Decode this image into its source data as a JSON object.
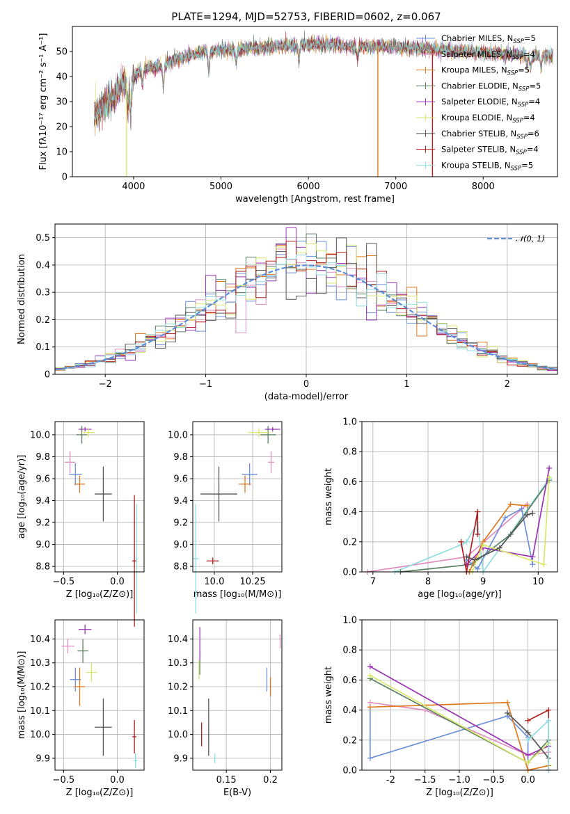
{
  "figure": {
    "title": "PLATE=1294, MJD=52753, FIBERID=0602, z=0.067"
  },
  "colors": {
    "Chabrier MILES": "#6b8fd8",
    "Salpeter MILES": "#e08ec0",
    "Kroupa MILES": "#e07a1f",
    "Chabrier ELODIE": "#5a8060",
    "Salpeter ELODIE": "#9a35b5",
    "Kroupa ELODIE": "#d9e86a",
    "Chabrier STELIB": "#555555",
    "Salpeter STELIB": "#b01e1e",
    "Kroupa STELIB": "#8fdde0",
    "normal": "#5b8fd8"
  },
  "chart_data": [
    {
      "id": "spectrum",
      "type": "line",
      "title": "PLATE=1294, MJD=52753, FIBERID=0602, z=0.067",
      "xlabel": "wavelength [Angstrom, rest frame]",
      "ylabel": "Flux [fλ10⁻¹⁷ erg cm⁻² s⁻¹ A⁻¹]",
      "xlim": [
        3300,
        8850
      ],
      "ylim": [
        0,
        60
      ],
      "xticks": [
        4000,
        5000,
        6000,
        7000,
        8000
      ],
      "yticks": [
        0,
        10,
        20,
        30,
        40,
        50
      ],
      "grid": false,
      "legend_position": "right",
      "legend": [
        {
          "label": "Chabrier MILES, N",
          "sub": "SSP",
          "suffix": "=5",
          "series": "Chabrier MILES"
        },
        {
          "label": "Salpeter MILES, N",
          "sub": "SSP",
          "suffix": "=4",
          "series": "Salpeter MILES"
        },
        {
          "label": "Kroupa MILES, N",
          "sub": "SSP",
          "suffix": "=5",
          "series": "Kroupa MILES"
        },
        {
          "label": "Chabrier ELODIE, N",
          "sub": "SSP",
          "suffix": "=5",
          "series": "Chabrier ELODIE"
        },
        {
          "label": "Salpeter ELODIE, N",
          "sub": "SSP",
          "suffix": "=4",
          "series": "Salpeter ELODIE"
        },
        {
          "label": "Kroupa ELODIE, N",
          "sub": "SSP",
          "suffix": "=4",
          "series": "Kroupa ELODIE"
        },
        {
          "label": "Chabrier STELIB, N",
          "sub": "SSP",
          "suffix": "=6",
          "series": "Chabrier STELIB"
        },
        {
          "label": "Salpeter STELIB, N",
          "sub": "SSP",
          "suffix": "=4",
          "series": "Salpeter STELIB"
        },
        {
          "label": "Kroupa STELIB, N",
          "sub": "SSP",
          "suffix": "=5",
          "series": "Kroupa STELIB"
        }
      ],
      "continuum": [
        [
          3550,
          25
        ],
        [
          3650,
          28
        ],
        [
          3750,
          31
        ],
        [
          3850,
          36
        ],
        [
          3950,
          38
        ],
        [
          4100,
          43
        ],
        [
          4300,
          44
        ],
        [
          4500,
          47
        ],
        [
          4800,
          50
        ],
        [
          5200,
          51
        ],
        [
          5600,
          52
        ],
        [
          6000,
          53
        ],
        [
          6500,
          52
        ],
        [
          7000,
          52
        ],
        [
          7400,
          51
        ],
        [
          7800,
          50
        ],
        [
          8200,
          49
        ],
        [
          8800,
          48
        ]
      ],
      "absorption_features": [
        [
          3933,
          12
        ],
        [
          3968,
          12
        ],
        [
          4102,
          6
        ],
        [
          4340,
          8
        ],
        [
          4861,
          8
        ],
        [
          5175,
          5
        ],
        [
          5890,
          6
        ],
        [
          6563,
          4
        ],
        [
          8500,
          4
        ],
        [
          8542,
          5
        ],
        [
          8662,
          4
        ]
      ],
      "spikes": [
        {
          "x": 3920,
          "series": "Kroupa ELODIE"
        },
        {
          "x": 6795,
          "series": "Kroupa MILES"
        },
        {
          "x": 7420,
          "series": "Salpeter STELIB"
        }
      ]
    },
    {
      "id": "residuals",
      "type": "step",
      "xlabel": "(data-model)/error",
      "ylabel": "Normed distribution",
      "xlim": [
        -2.5,
        2.5
      ],
      "ylim": [
        0,
        0.55
      ],
      "xticks": [
        -2,
        -1,
        0,
        1,
        2
      ],
      "yticks": [
        0.0,
        0.1,
        0.2,
        0.3,
        0.4,
        0.5
      ],
      "grid": true,
      "legend_position": "top-right",
      "legend_label": "𝒩(0, 1)",
      "bin_width": 0.1,
      "bin_start": -2.5,
      "reference": {
        "type": "normal",
        "mean": 0,
        "sigma": 1
      }
    },
    {
      "id": "age_vs_Z",
      "type": "errorbar",
      "xlabel": "Z [log₁₀(Z/Z⊙)]",
      "ylabel": "age  [log₁₀(age/yr)]",
      "xlim": [
        -0.58,
        0.25
      ],
      "ylim": [
        8.75,
        10.12
      ],
      "xticks": [
        -0.5,
        0.0
      ],
      "yticks": [
        8.8,
        9.0,
        9.2,
        9.4,
        9.6,
        9.8,
        10.0
      ],
      "grid": true,
      "points": [
        {
          "series": "Chabrier MILES",
          "x": -0.39,
          "y": 9.64,
          "xerr": 0.06,
          "yerr": 0.1
        },
        {
          "series": "Salpeter MILES",
          "x": -0.44,
          "y": 9.75,
          "xerr": 0.05,
          "yerr": 0.1
        },
        {
          "series": "Kroupa MILES",
          "x": -0.35,
          "y": 9.55,
          "xerr": 0.05,
          "yerr": 0.08
        },
        {
          "series": "Chabrier ELODIE",
          "x": -0.33,
          "y": 10.0,
          "xerr": 0.05,
          "yerr": 0.08
        },
        {
          "series": "Salpeter ELODIE",
          "x": -0.3,
          "y": 10.05,
          "xerr": 0.06,
          "yerr": 0.02
        },
        {
          "series": "Kroupa ELODIE",
          "x": -0.27,
          "y": 10.02,
          "xerr": 0.06,
          "yerr": 0.04
        },
        {
          "series": "Chabrier STELIB",
          "x": -0.13,
          "y": 9.46,
          "xerr": 0.08,
          "yerr": 0.25
        },
        {
          "series": "Salpeter STELIB",
          "x": 0.16,
          "y": 8.85,
          "xerr": 0.02,
          "yerr": 0.6
        },
        {
          "series": "Kroupa STELIB",
          "x": 0.18,
          "y": 8.87,
          "xerr": 0.01,
          "yerr": 0.5
        }
      ]
    },
    {
      "id": "age_vs_mass",
      "type": "errorbar",
      "xlabel": "mass [log₁₀(M/M⊙)]",
      "ylabel": "",
      "xlim": [
        9.86,
        10.44
      ],
      "ylim": [
        8.75,
        10.12
      ],
      "xticks": [
        10.0,
        10.25
      ],
      "yticks": [
        8.8,
        9.0,
        9.2,
        9.4,
        9.6,
        9.8,
        10.0
      ],
      "grid": true,
      "points": [
        {
          "series": "Chabrier MILES",
          "x": 10.23,
          "y": 9.64,
          "xerr": 0.05,
          "yerr": 0.1
        },
        {
          "series": "Salpeter MILES",
          "x": 10.37,
          "y": 9.75,
          "xerr": 0.02,
          "yerr": 0.1
        },
        {
          "series": "Kroupa MILES",
          "x": 10.2,
          "y": 9.55,
          "xerr": 0.04,
          "yerr": 0.08
        },
        {
          "series": "Chabrier ELODIE",
          "x": 10.35,
          "y": 10.0,
          "xerr": 0.05,
          "yerr": 0.08
        },
        {
          "series": "Salpeter ELODIE",
          "x": 10.38,
          "y": 10.05,
          "xerr": 0.05,
          "yerr": 0.02
        },
        {
          "series": "Kroupa ELODIE",
          "x": 10.29,
          "y": 10.02,
          "xerr": 0.07,
          "yerr": 0.04
        },
        {
          "series": "Chabrier STELIB",
          "x": 10.03,
          "y": 9.46,
          "xerr": 0.12,
          "yerr": 0.25
        },
        {
          "series": "Salpeter STELIB",
          "x": 9.99,
          "y": 8.85,
          "xerr": 0.04,
          "yerr": 0.03
        },
        {
          "series": "Kroupa STELIB",
          "x": 9.88,
          "y": 8.87,
          "xerr": 0.02,
          "yerr": 0.5
        }
      ]
    },
    {
      "id": "mass_weight_vs_age",
      "type": "line",
      "xlabel": "age  [log₁₀(age/yr)]",
      "ylabel": "mass weight",
      "xlim": [
        6.8,
        10.35
      ],
      "ylim": [
        0,
        1.0
      ],
      "xticks": [
        7,
        8,
        9,
        10
      ],
      "yticks": [
        0.0,
        0.2,
        0.4,
        0.6,
        0.8,
        1.0
      ],
      "grid": true,
      "series": [
        {
          "name": "Salpeter MILES",
          "x": [
            6.9,
            8.7,
            9.8
          ],
          "y": [
            0.0,
            0.1,
            0.45
          ]
        },
        {
          "name": "Kroupa STELIB",
          "x": [
            7.4,
            8.6,
            8.7,
            8.9,
            9.0,
            10.2
          ],
          "y": [
            0.0,
            0.18,
            0.2,
            0.33,
            0.0,
            0.62
          ]
        },
        {
          "name": "Chabrier ELODIE",
          "x": [
            7.5,
            8.8,
            9.5,
            10.2
          ],
          "y": [
            0.0,
            0.05,
            0.25,
            0.61
          ]
        },
        {
          "name": "Chabrier MILES",
          "x": [
            8.7,
            8.9,
            9.4,
            9.7,
            9.9
          ],
          "y": [
            0.08,
            0.02,
            0.36,
            0.42,
            0.05
          ]
        },
        {
          "name": "Kroupa MILES",
          "x": [
            8.75,
            9.0,
            9.5,
            9.8
          ],
          "y": [
            0.0,
            0.2,
            0.45,
            0.44
          ]
        },
        {
          "name": "Salpeter ELODIE",
          "x": [
            8.7,
            9.0,
            9.9,
            10.2
          ],
          "y": [
            0.05,
            0.16,
            0.1,
            0.69
          ]
        },
        {
          "name": "Kroupa ELODIE",
          "x": [
            8.8,
            9.0,
            10.1,
            10.2
          ],
          "y": [
            0.0,
            0.18,
            0.05,
            0.63
          ]
        },
        {
          "name": "Salpeter STELIB",
          "x": [
            8.6,
            8.7,
            8.9,
            8.9
          ],
          "y": [
            0.2,
            0.0,
            0.4,
            0.25
          ]
        },
        {
          "name": "Chabrier STELIB",
          "x": [
            8.7,
            8.85,
            9.3,
            9.8,
            9.9
          ],
          "y": [
            0.1,
            0.08,
            0.16,
            0.38,
            0.39
          ]
        }
      ]
    },
    {
      "id": "mass_vs_Z",
      "type": "errorbar",
      "xlabel": "Z [log₁₀(Z/Z⊙)]",
      "ylabel": "mass [log₁₀(M/M⊙)]",
      "xlim": [
        -0.58,
        0.25
      ],
      "ylim": [
        9.85,
        10.48
      ],
      "xticks": [
        -0.5,
        0.0
      ],
      "yticks": [
        9.9,
        10.0,
        10.1,
        10.2,
        10.3,
        10.4
      ],
      "grid": true,
      "points": [
        {
          "series": "Chabrier MILES",
          "x": -0.39,
          "y": 10.23,
          "xerr": 0.05,
          "yerr": 0.05
        },
        {
          "series": "Salpeter MILES",
          "x": -0.46,
          "y": 10.37,
          "xerr": 0.06,
          "yerr": 0.03
        },
        {
          "series": "Kroupa MILES",
          "x": -0.35,
          "y": 10.2,
          "xerr": 0.05,
          "yerr": 0.08
        },
        {
          "series": "Chabrier ELODIE",
          "x": -0.32,
          "y": 10.35,
          "xerr": 0.05,
          "yerr": 0.05
        },
        {
          "series": "Salpeter ELODIE",
          "x": -0.3,
          "y": 10.44,
          "xerr": 0.06,
          "yerr": 0.02
        },
        {
          "series": "Kroupa ELODIE",
          "x": -0.24,
          "y": 10.26,
          "xerr": 0.05,
          "yerr": 0.04
        },
        {
          "series": "Chabrier STELIB",
          "x": -0.13,
          "y": 10.03,
          "xerr": 0.08,
          "yerr": 0.12
        },
        {
          "series": "Salpeter STELIB",
          "x": 0.16,
          "y": 9.99,
          "xerr": 0.02,
          "yerr": 0.07
        },
        {
          "series": "Kroupa STELIB",
          "x": 0.17,
          "y": 9.89,
          "xerr": 0.02,
          "yerr": 0.03
        }
      ]
    },
    {
      "id": "mass_vs_ebv",
      "type": "errorbar",
      "xlabel": "E(B-V)",
      "ylabel": "",
      "xlim": [
        0.112,
        0.213
      ],
      "ylim": [
        9.85,
        10.48
      ],
      "xticks": [
        0.15,
        0.2
      ],
      "yticks": [
        9.9,
        10.0,
        10.1,
        10.2,
        10.3,
        10.4
      ],
      "grid": true,
      "points": [
        {
          "series": "Chabrier MILES",
          "x": 0.196,
          "y": 10.23,
          "xerr": 0.0,
          "yerr": 0.05
        },
        {
          "series": "Salpeter MILES",
          "x": 0.211,
          "y": 10.39,
          "xerr": 0.0,
          "yerr": 0.03
        },
        {
          "series": "Kroupa MILES",
          "x": 0.2,
          "y": 10.2,
          "xerr": 0.0,
          "yerr": 0.04
        },
        {
          "series": "Chabrier ELODIE",
          "x": 0.12,
          "y": 10.3,
          "xerr": 0.0,
          "yerr": 0.05
        },
        {
          "series": "Salpeter ELODIE",
          "x": 0.12,
          "y": 10.38,
          "xerr": 0.0,
          "yerr": 0.07
        },
        {
          "series": "Kroupa ELODIE",
          "x": 0.119,
          "y": 10.27,
          "xerr": 0.0,
          "yerr": 0.04
        },
        {
          "series": "Chabrier STELIB",
          "x": 0.13,
          "y": 10.03,
          "xerr": 0.0,
          "yerr": 0.12
        },
        {
          "series": "Salpeter STELIB",
          "x": 0.122,
          "y": 10.0,
          "xerr": 0.0,
          "yerr": 0.05
        },
        {
          "series": "Kroupa STELIB",
          "x": 0.137,
          "y": 9.9,
          "xerr": 0.0,
          "yerr": 0.02
        }
      ]
    },
    {
      "id": "mass_weight_vs_Z",
      "type": "line",
      "xlabel": "Z [log₁₀(Z/Z⊙)]",
      "ylabel": "mass weight",
      "xlim": [
        -2.42,
        0.43
      ],
      "ylim": [
        0,
        1.0
      ],
      "xticks": [
        -2.0,
        -1.5,
        -1.0,
        -0.5,
        0.0
      ],
      "yticks": [
        0.0,
        0.2,
        0.4,
        0.6,
        0.8,
        1.0
      ],
      "grid": true,
      "series": [
        {
          "name": "Chabrier MILES",
          "x": [
            -2.3,
            -2.3,
            -0.3,
            0.0,
            0.0
          ],
          "y": [
            0.42,
            0.08,
            0.36,
            0.22,
            0.05
          ]
        },
        {
          "name": "Salpeter MILES",
          "x": [
            -2.3,
            -1.5,
            0.0,
            0.3
          ],
          "y": [
            0.45,
            0.4,
            0.1,
            0.12
          ]
        },
        {
          "name": "Kroupa MILES",
          "x": [
            -2.3,
            -0.3,
            0.0,
            0.3
          ],
          "y": [
            0.42,
            0.45,
            0.0,
            0.03
          ]
        },
        {
          "name": "Chabrier ELODIE",
          "x": [
            -2.3,
            0.0,
            0.3
          ],
          "y": [
            0.61,
            0.05,
            0.2
          ]
        },
        {
          "name": "Salpeter ELODIE",
          "x": [
            -2.3,
            0.0,
            0.3
          ],
          "y": [
            0.69,
            0.1,
            0.16
          ]
        },
        {
          "name": "Kroupa ELODIE",
          "x": [
            -2.3,
            0.0,
            0.3
          ],
          "y": [
            0.63,
            0.05,
            0.18
          ]
        },
        {
          "name": "Chabrier STELIB",
          "x": [
            -0.3,
            0.0,
            0.3
          ],
          "y": [
            0.38,
            0.25,
            0.08
          ]
        },
        {
          "name": "Salpeter STELIB",
          "x": [
            0.0,
            0.3,
            0.3
          ],
          "y": [
            0.33,
            0.4,
            0.0
          ]
        },
        {
          "name": "Kroupa STELIB",
          "x": [
            0.0,
            0.3,
            0.3
          ],
          "y": [
            0.2,
            0.33,
            0.0
          ]
        }
      ]
    }
  ]
}
